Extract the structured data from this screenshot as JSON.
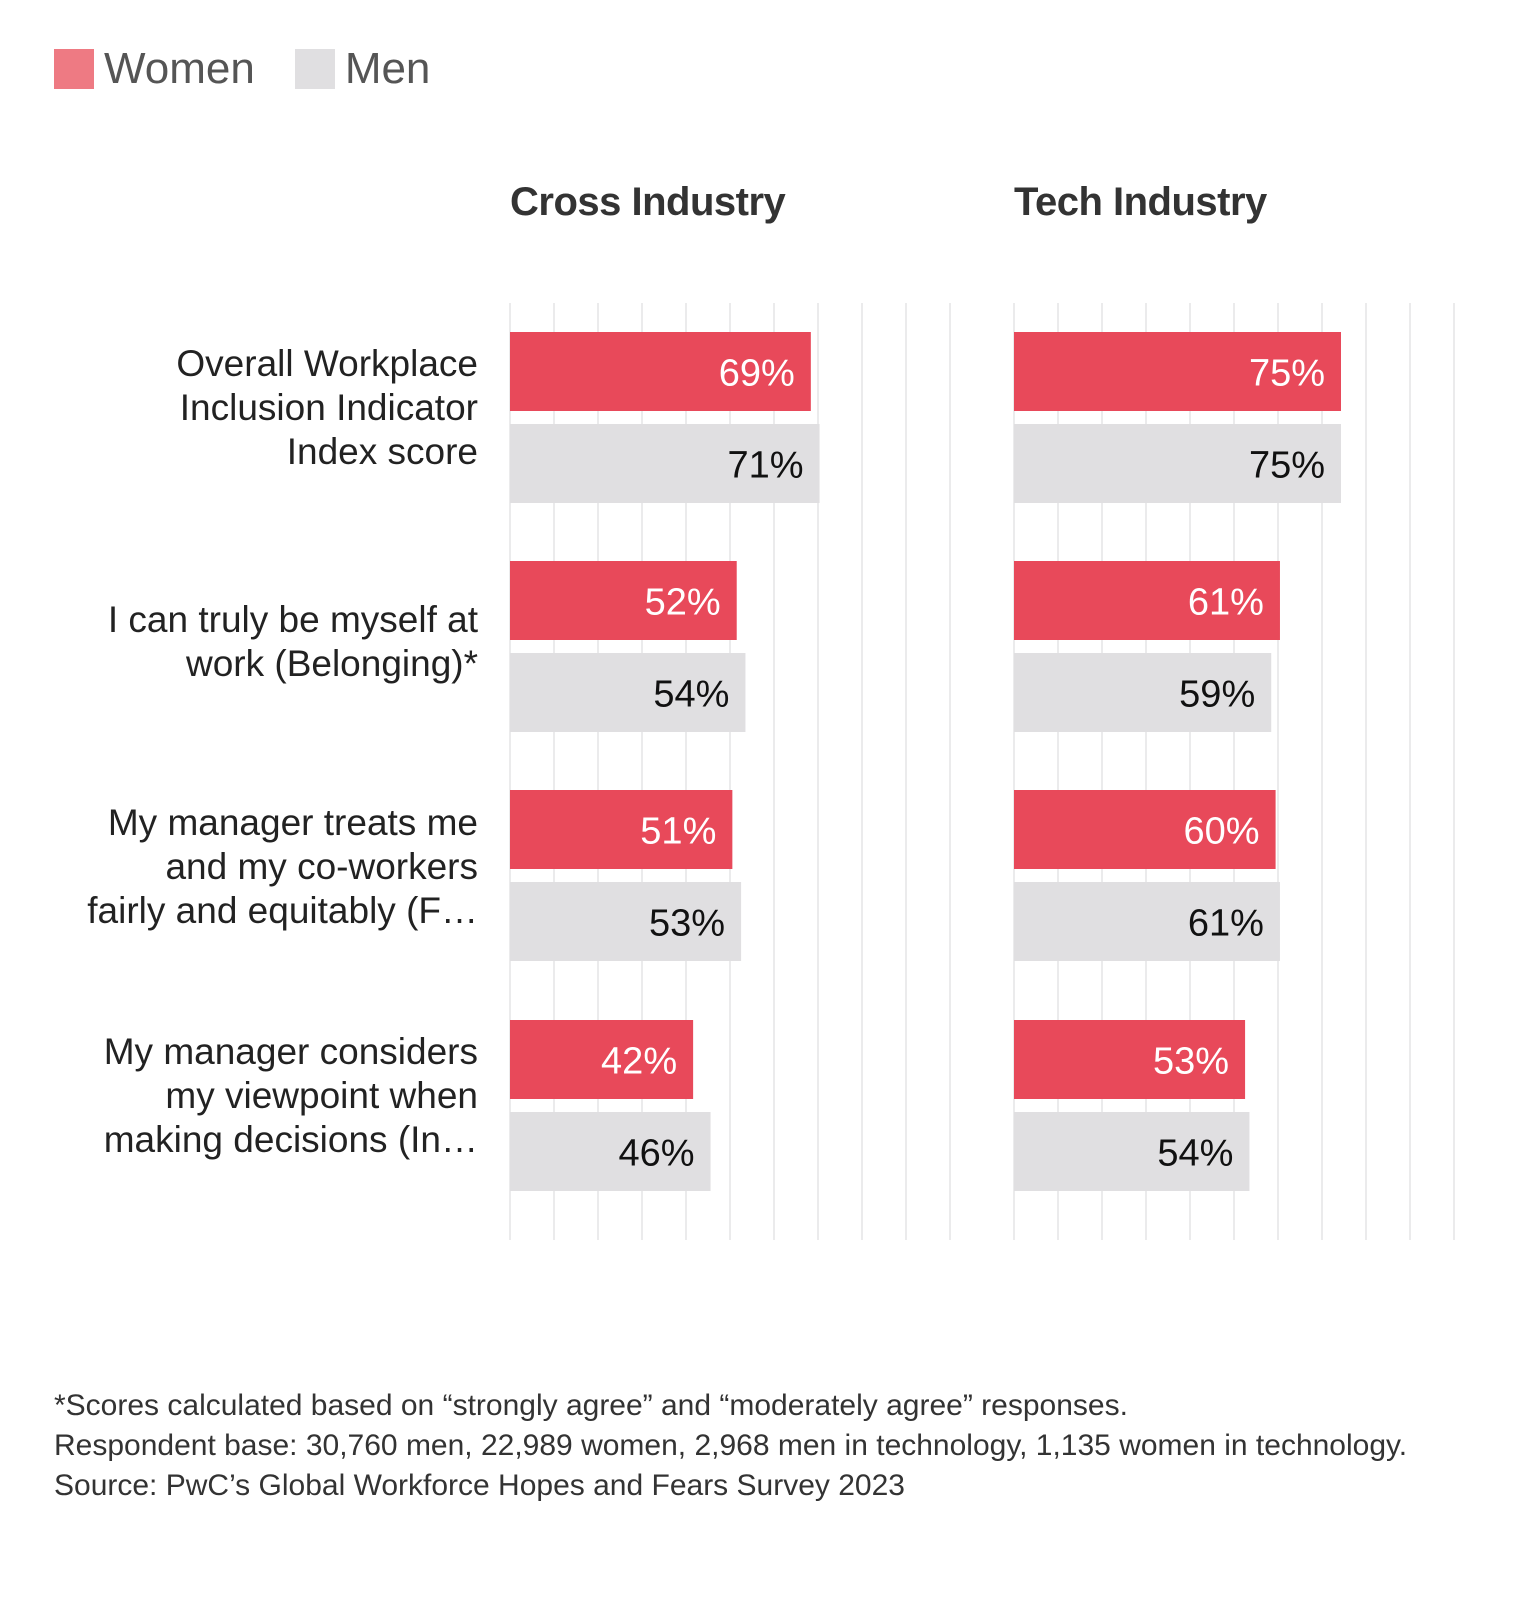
{
  "legend": [
    {
      "label": "Women",
      "color": "#E8495A"
    },
    {
      "label": "Men",
      "color": "#E0DFE1"
    }
  ],
  "chart_data": [
    {
      "type": "bar",
      "orientation": "horizontal",
      "title": "Cross Industry",
      "categories": [
        "Overall Workplace Inclusion Indicator Index score",
        "I can truly be myself at work (Belonging)*",
        "My manager treats me and my co-workers fairly and equitably (F…",
        "My manager considers my viewpoint when making decisions (In…"
      ],
      "series": [
        {
          "name": "Women",
          "values": [
            69,
            52,
            51,
            42
          ],
          "labels": [
            "69%",
            "52%",
            "51%",
            "42%"
          ]
        },
        {
          "name": "Men",
          "values": [
            71,
            54,
            53,
            46
          ],
          "labels": [
            "71%",
            "54%",
            "53%",
            "46%"
          ]
        }
      ],
      "xlim": [
        0,
        100
      ],
      "grid": true,
      "legend_position": "top-left"
    },
    {
      "type": "bar",
      "orientation": "horizontal",
      "title": "Tech Industry",
      "categories": [
        "Overall Workplace Inclusion Indicator Index score",
        "I can truly be myself at work (Belonging)*",
        "My manager treats me and my co-workers fairly and equitably (F…",
        "My manager considers my viewpoint when making decisions (In…"
      ],
      "series": [
        {
          "name": "Women",
          "values": [
            75,
            61,
            60,
            53
          ],
          "labels": [
            "75%",
            "61%",
            "60%",
            "53%"
          ]
        },
        {
          "name": "Men",
          "values": [
            75,
            59,
            61,
            54
          ],
          "labels": [
            "75%",
            "59%",
            "61%",
            "54%"
          ]
        }
      ],
      "xlim": [
        0,
        100
      ],
      "grid": true,
      "legend_position": "top-left"
    }
  ],
  "row_labels": [
    [
      "Overall Workplace",
      "Inclusion Indicator",
      "Index score"
    ],
    [
      "I can truly be myself at",
      "work (Belonging)*"
    ],
    [
      "My manager treats me",
      "and my co-workers",
      "fairly and equitably (F…"
    ],
    [
      "My manager considers",
      "my viewpoint when",
      "making decisions (In…"
    ]
  ],
  "footnote": [
    "*Scores calculated based on “strongly agree” and “moderately agree” responses.",
    "Respondent base: 30,760 men, 22,989 women, 2,968 men in technology, 1,135 women in technology.",
    "Source: PwC’s Global Workforce Hopes and Fears Survey 2023"
  ]
}
